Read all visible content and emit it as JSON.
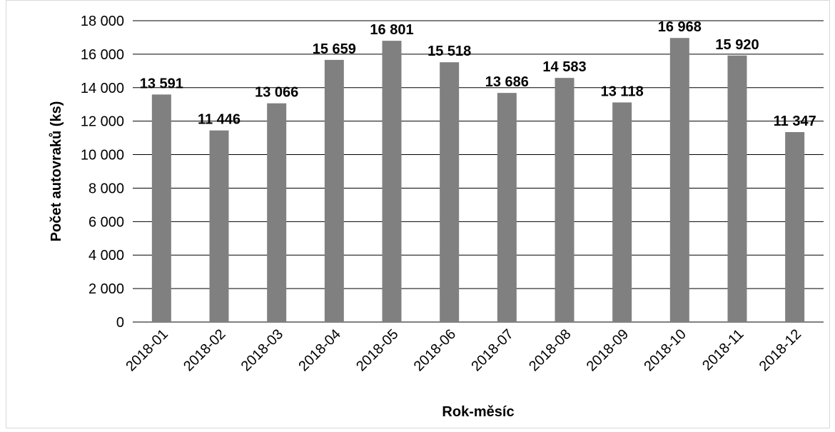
{
  "chart_data": {
    "type": "bar",
    "title": "",
    "xlabel": "Rok-měsíc",
    "ylabel": "Počet autovraků (ks)",
    "categories": [
      "2018-01",
      "2018-02",
      "2018-03",
      "2018-04",
      "2018-05",
      "2018-06",
      "2018-07",
      "2018-08",
      "2018-09",
      "2018-10",
      "2018-11",
      "2018-12"
    ],
    "values": [
      13591,
      11446,
      13066,
      15659,
      16801,
      15518,
      13686,
      14583,
      13118,
      16968,
      15920,
      11347
    ],
    "data_labels": [
      "13 591",
      "11 446",
      "13 066",
      "15 659",
      "16 801",
      "15 518",
      "13 686",
      "14 583",
      "13 118",
      "16 968",
      "15 920",
      "11 347"
    ],
    "ylim": [
      0,
      18000
    ],
    "y_ticks": [
      0,
      2000,
      4000,
      6000,
      8000,
      10000,
      12000,
      14000,
      16000,
      18000
    ],
    "y_tick_labels": [
      "0",
      "2 000",
      "4 000",
      "6 000",
      "8 000",
      "10 000",
      "12 000",
      "14 000",
      "16 000",
      "18 000"
    ],
    "grid": true,
    "legend": "none",
    "bar_color": "#808080",
    "grid_color": "#000000"
  }
}
